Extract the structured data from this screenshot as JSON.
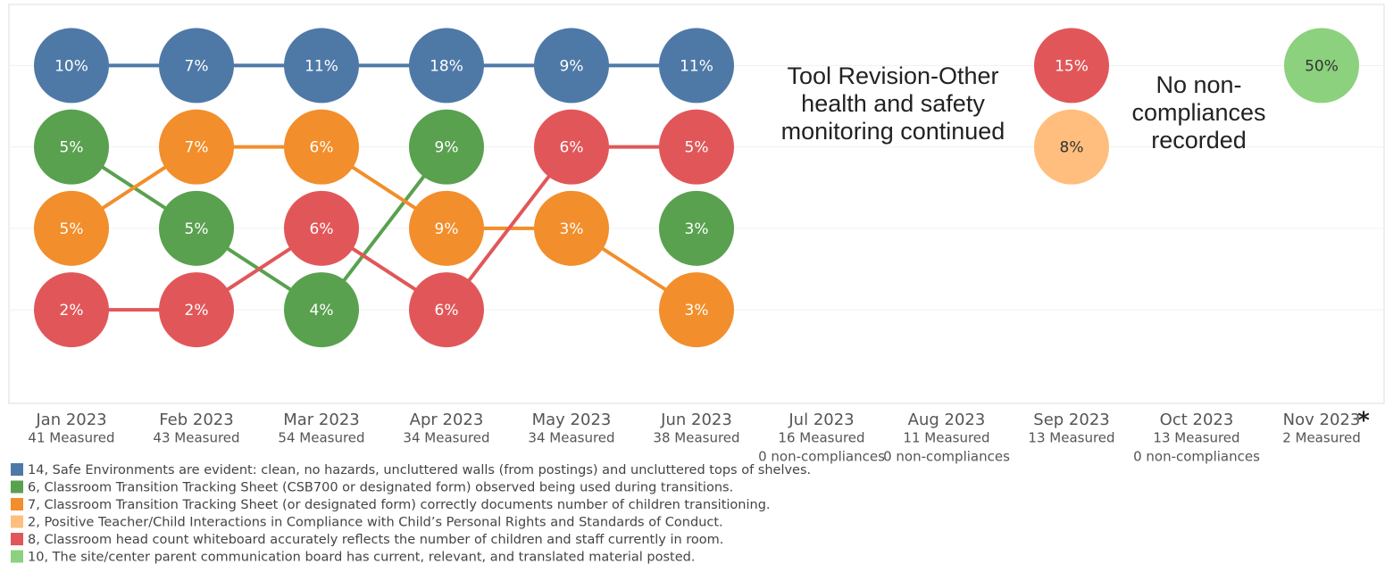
{
  "chart_data": {
    "type": "bump",
    "categories": [
      "Jan 2023",
      "Feb 2023",
      "Mar 2023",
      "Apr 2023",
      "May 2023",
      "Jun 2023",
      "Jul 2023",
      "Aug 2023",
      "Sep 2023",
      "Oct 2023",
      "Nov 2023"
    ],
    "measured": [
      "41 Measured",
      "43 Measured",
      "54 Measured",
      "34 Measured",
      "34 Measured",
      "38 Measured",
      "16 Measured",
      "11 Measured",
      "13 Measured",
      "13 Measured",
      "2 Measured"
    ],
    "notes": [
      null,
      null,
      null,
      null,
      null,
      null,
      "0 non-compliances",
      "0 non-compliances",
      null,
      "0 non-compliances",
      null
    ],
    "footnote_marker": "*",
    "annotations": [
      {
        "text": "Tool Revision-Other health and safety monitoring continued"
      },
      {
        "text": "No non-compliances recorded"
      }
    ],
    "rank_lim": [
      0.25,
      5.15
    ],
    "rank_ticks": [
      1,
      2,
      3,
      4
    ],
    "series": [
      {
        "name": "14, Safe Environments are evident: clean, no hazards, uncluttered walls (from postings) and uncluttered tops of shelves.",
        "color": "#4e79a7",
        "values": [
          10,
          7,
          11,
          18,
          9,
          11,
          null,
          null,
          null,
          null,
          null
        ],
        "value_labels": [
          "10%",
          "7%",
          "11%",
          "18%",
          "9%",
          "11%",
          null,
          null,
          null,
          null,
          null
        ],
        "ranks": [
          1,
          1,
          1,
          1,
          1,
          1,
          null,
          null,
          null,
          null,
          null
        ]
      },
      {
        "name": "6, Classroom Transition Tracking Sheet (CSB700 or designated form) observed being used during transitions.",
        "color": "#59a14f",
        "values": [
          5,
          5,
          4,
          9,
          null,
          3,
          null,
          null,
          null,
          null,
          null
        ],
        "value_labels": [
          "5%",
          "5%",
          "4%",
          "9%",
          null,
          "3%",
          null,
          null,
          null,
          null,
          null
        ],
        "ranks": [
          2,
          3,
          4,
          2,
          null,
          3,
          null,
          null,
          null,
          null,
          null
        ]
      },
      {
        "name": "7, Classroom Transition Tracking Sheet (or designated form) correctly documents number of children transitioning.",
        "color": "#f28e2b",
        "values": [
          5,
          7,
          6,
          9,
          3,
          3,
          null,
          null,
          null,
          null,
          null
        ],
        "value_labels": [
          "5%",
          "7%",
          "6%",
          "9%",
          "3%",
          "3%",
          null,
          null,
          null,
          null,
          null
        ],
        "ranks": [
          3,
          2,
          2,
          3,
          3,
          4,
          null,
          null,
          null,
          null,
          null
        ]
      },
      {
        "name": "2, Positive Teacher/Child Interactions in Compliance with Child’s Personal Rights and Standards of Conduct.",
        "color": "#ffbe7d",
        "values": [
          null,
          null,
          null,
          null,
          null,
          null,
          null,
          null,
          8,
          null,
          null
        ],
        "value_labels": [
          null,
          null,
          null,
          null,
          null,
          null,
          null,
          null,
          "8%",
          null,
          null
        ],
        "ranks": [
          null,
          null,
          null,
          null,
          null,
          null,
          null,
          null,
          2,
          null,
          null
        ]
      },
      {
        "name": "8, Classroom head count whiteboard accurately reflects the number of children and staff currently in room.",
        "color": "#e15759",
        "values": [
          2,
          2,
          6,
          6,
          6,
          5,
          null,
          null,
          15,
          null,
          null
        ],
        "value_labels": [
          "2%",
          "2%",
          "6%",
          "6%",
          "6%",
          "5%",
          null,
          null,
          "15%",
          null,
          null
        ],
        "ranks": [
          4,
          4,
          3,
          4,
          2,
          2,
          null,
          null,
          1,
          null,
          null
        ]
      },
      {
        "name": "10, The site/center parent communication board has current, relevant, and translated material posted.",
        "color": "#8cd17d",
        "values": [
          null,
          null,
          null,
          null,
          null,
          null,
          null,
          null,
          null,
          null,
          50
        ],
        "value_labels": [
          null,
          null,
          null,
          null,
          null,
          null,
          null,
          null,
          null,
          null,
          "50%"
        ],
        "ranks": [
          null,
          null,
          null,
          null,
          null,
          null,
          null,
          null,
          null,
          null,
          1
        ]
      }
    ]
  }
}
